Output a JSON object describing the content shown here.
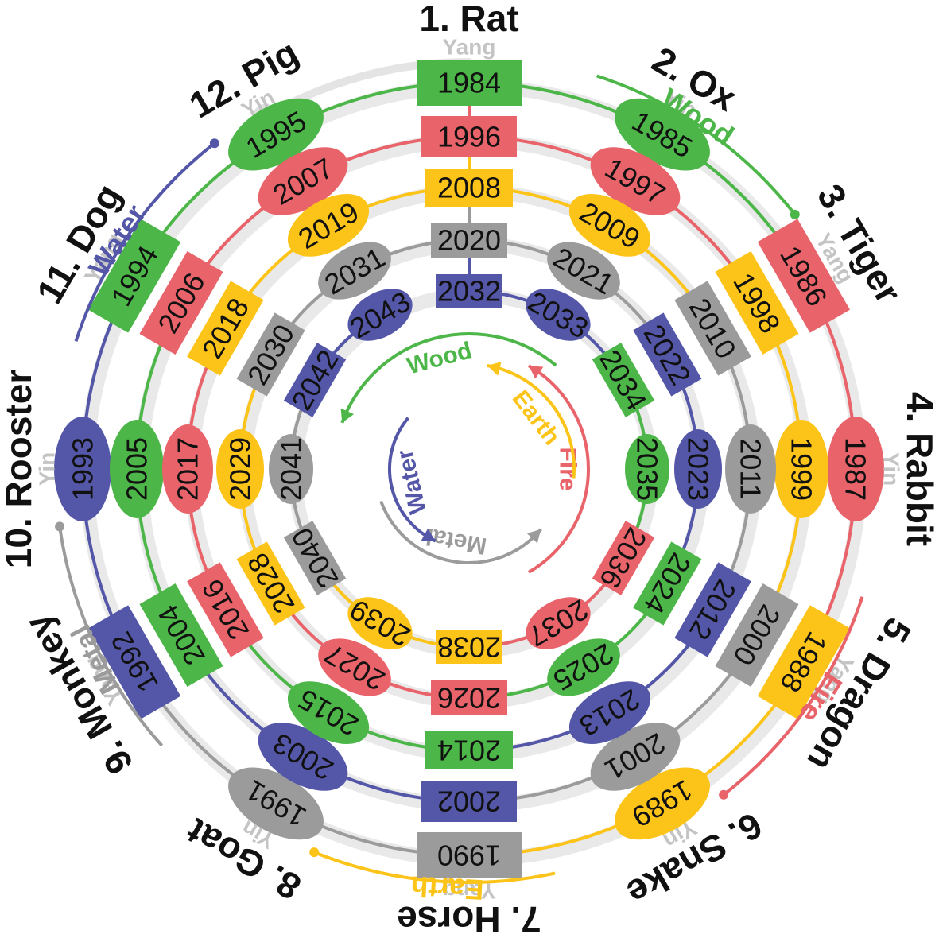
{
  "colors": {
    "Wood": "#4cb748",
    "Fire": "#e8636a",
    "Earth": "#fcc419",
    "Metal": "#9b9b9b",
    "Water": "#5457a8",
    "Yang": "#c4c4c4",
    "Sign": "#111111"
  },
  "signs": [
    {
      "label": "1. Rat",
      "polarity": "Yang"
    },
    {
      "label": "2. Ox",
      "polarity": "Yin"
    },
    {
      "label": "3. Tiger",
      "polarity": "Yang"
    },
    {
      "label": "4. Rabbit",
      "polarity": "Yin"
    },
    {
      "label": "5. Dragon",
      "polarity": "Yang"
    },
    {
      "label": "6. Snake",
      "polarity": "Yin"
    },
    {
      "label": "7. Horse",
      "polarity": "Yang"
    },
    {
      "label": "8. Goat",
      "polarity": "Yin"
    },
    {
      "label": "9. Monkey",
      "polarity": "Yang"
    },
    {
      "label": "10. Rooster",
      "polarity": "Yin"
    },
    {
      "label": "11. Dog",
      "polarity": "Yang"
    },
    {
      "label": "12. Pig",
      "polarity": "Yin"
    }
  ],
  "rings": [
    {
      "years": [
        "1984",
        "1985",
        "1986",
        "1987",
        "1988",
        "1989",
        "1990",
        "1991",
        "1992",
        "1993",
        "1994",
        "1995"
      ]
    },
    {
      "years": [
        "1996",
        "1997",
        "1998",
        "1999",
        "2000",
        "2001",
        "2002",
        "2003",
        "2004",
        "2005",
        "2006",
        "2007"
      ]
    },
    {
      "years": [
        "2008",
        "2009",
        "2010",
        "2011",
        "2012",
        "2013",
        "2014",
        "2015",
        "2016",
        "2017",
        "2018",
        "2019"
      ]
    },
    {
      "years": [
        "2020",
        "2021",
        "2022",
        "2023",
        "2024",
        "2025",
        "2026",
        "2027",
        "2028",
        "2029",
        "2030",
        "2031"
      ]
    },
    {
      "years": [
        "2032",
        "2033",
        "2034",
        "2035",
        "2036",
        "2037",
        "2038",
        "2039",
        "2040",
        "2041",
        "2042",
        "2043"
      ]
    }
  ],
  "outer_elements": [
    "Wood",
    "Fire",
    "Earth",
    "Metal",
    "Water"
  ],
  "inner_elements": [
    "Wood",
    "Fire",
    "Earth",
    "Metal",
    "Water"
  ]
}
